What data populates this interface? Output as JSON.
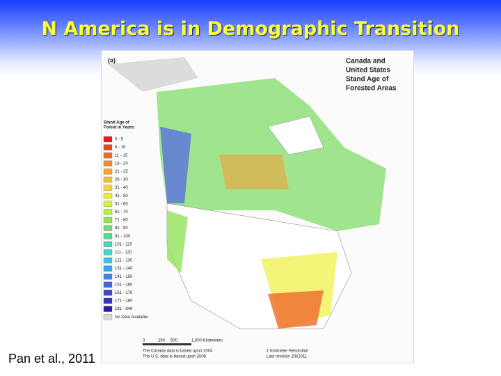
{
  "slide": {
    "title": "N America is in Demographic Transition",
    "citation": "Pan et al., 2011"
  },
  "map": {
    "panel_label": "(a)",
    "map_title": [
      "Canada and",
      "United States",
      "Stand Age of",
      "Forested Areas"
    ],
    "legend_title": [
      "Stand Age of",
      "Forest in Years:"
    ],
    "legend": [
      {
        "label": "0 - 5",
        "color": "#e31a1c"
      },
      {
        "label": "6 - 10",
        "color": "#e8412a"
      },
      {
        "label": "11 - 15",
        "color": "#ee6a2c"
      },
      {
        "label": "16 - 20",
        "color": "#f28a2e"
      },
      {
        "label": "21 - 25",
        "color": "#f5a430"
      },
      {
        "label": "26 - 30",
        "color": "#f7bd33"
      },
      {
        "label": "31 - 40",
        "color": "#f4d437"
      },
      {
        "label": "41 - 50",
        "color": "#eeea3a"
      },
      {
        "label": "51 - 60",
        "color": "#d6ef3e"
      },
      {
        "label": "61 - 70",
        "color": "#b6ea48"
      },
      {
        "label": "71 - 80",
        "color": "#93e25a"
      },
      {
        "label": "81 - 90",
        "color": "#74db74"
      },
      {
        "label": "91 - 100",
        "color": "#5cd891"
      },
      {
        "label": "101 - 110",
        "color": "#4fd6b0"
      },
      {
        "label": "111 - 120",
        "color": "#45d3cf"
      },
      {
        "label": "121 - 130",
        "color": "#3fc2e6"
      },
      {
        "label": "131 - 140",
        "color": "#3ea3ea"
      },
      {
        "label": "141 - 150",
        "color": "#3f84e6"
      },
      {
        "label": "151 - 160",
        "color": "#3f66dc"
      },
      {
        "label": "161 - 170",
        "color": "#3e48cf"
      },
      {
        "label": "171 - 180",
        "color": "#3a2fbf"
      },
      {
        "label": "181 - 846",
        "color": "#3418a4"
      },
      {
        "label": "No Data Available",
        "color": "#d9d9d9"
      }
    ],
    "scale": [
      "0",
      "250",
      "500",
      "1,000 Kilometers"
    ],
    "notes": [
      "The Canada data is based upon 2004",
      "The U.S. data is based upon 2006"
    ],
    "resolution": [
      "1 Kilometer Resolution",
      "Last revision 2/8/2011"
    ]
  }
}
